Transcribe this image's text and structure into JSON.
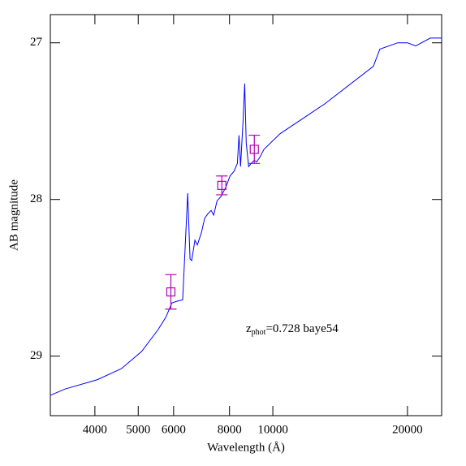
{
  "chart_data": {
    "type": "line",
    "x_label": "Wavelength (Å)",
    "y_label": "AB magnitude",
    "xlim": [
      3180,
      23850
    ],
    "ylim": [
      29.38,
      26.82
    ],
    "log_x": true,
    "xticks": [
      4000,
      5000,
      6000,
      8000,
      10000,
      20000
    ],
    "yticks": [
      27,
      28,
      29
    ],
    "annotation": {
      "text": "z",
      "subscript": "phot",
      "rest": "=0.728 baye54",
      "color": "#0000ff"
    },
    "series": [
      {
        "color": "#0000ff",
        "x": [
          3180,
          3430,
          4055,
          4585,
          5090,
          5540,
          5770,
          5945,
          6100,
          6285,
          6370,
          6450,
          6530,
          6585,
          6695,
          6780,
          6925,
          7040,
          7160,
          7280,
          7375,
          7500,
          7660,
          7855,
          8020,
          8190,
          8330,
          8400,
          8470,
          8575,
          8650,
          8720,
          8830,
          8940,
          9090,
          9200,
          9355,
          9550,
          10380,
          13060,
          16780,
          17350,
          19020,
          20000,
          20860,
          22490,
          23850
        ],
        "values": [
          29.25,
          29.21,
          29.15,
          29.08,
          28.97,
          28.83,
          28.75,
          28.66,
          28.65,
          28.64,
          28.29,
          27.96,
          28.38,
          28.39,
          28.26,
          28.29,
          28.21,
          28.12,
          28.09,
          28.07,
          28.1,
          28.01,
          27.98,
          27.92,
          27.85,
          27.82,
          27.77,
          27.59,
          27.79,
          27.51,
          27.26,
          27.64,
          27.79,
          27.77,
          27.75,
          27.76,
          27.73,
          27.68,
          27.58,
          27.39,
          27.15,
          27.04,
          27.0,
          27.0,
          27.02,
          26.97,
          26.97
        ]
      }
    ],
    "points": {
      "color": "#b000b0",
      "x": [
        5915,
        7690,
        9090
      ],
      "values": [
        28.59,
        27.91,
        27.68
      ],
      "errors": [
        0.11,
        0.06,
        0.09
      ]
    }
  }
}
